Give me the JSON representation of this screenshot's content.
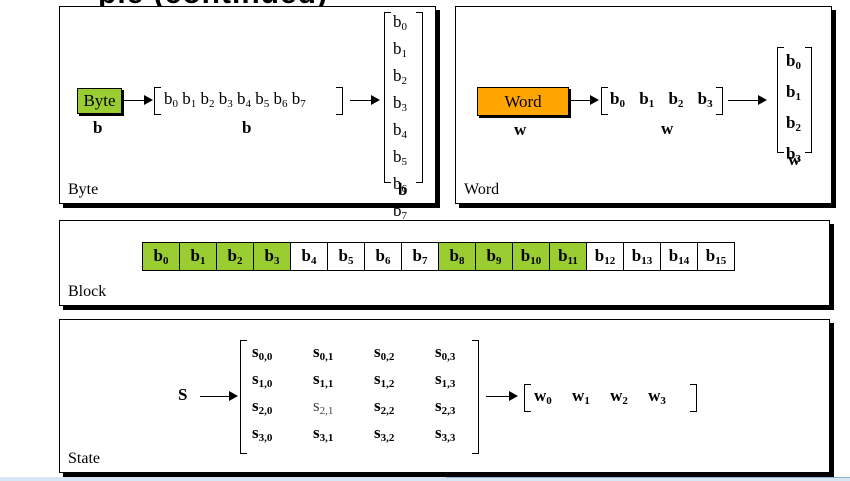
{
  "title_fragment": "ple (continued)",
  "panels": {
    "byte": {
      "label": "Byte",
      "box_label": "Byte",
      "box_var": "b",
      "row_var": "b",
      "col_var": "b",
      "row_items": [
        {
          "base": "b",
          "sub": "0"
        },
        {
          "base": "b",
          "sub": "1"
        },
        {
          "base": "b",
          "sub": "2"
        },
        {
          "base": "b",
          "sub": "3"
        },
        {
          "base": "b",
          "sub": "4"
        },
        {
          "base": "b",
          "sub": "5"
        },
        {
          "base": "b",
          "sub": "6"
        },
        {
          "base": "b",
          "sub": "7"
        }
      ],
      "col_items": [
        {
          "base": "b",
          "sub": "0"
        },
        {
          "base": "b",
          "sub": "1"
        },
        {
          "base": "b",
          "sub": "2"
        },
        {
          "base": "b",
          "sub": "3"
        },
        {
          "base": "b",
          "sub": "4"
        },
        {
          "base": "b",
          "sub": "5"
        },
        {
          "base": "b",
          "sub": "6"
        },
        {
          "base": "b",
          "sub": "7"
        }
      ]
    },
    "word": {
      "label": "Word",
      "box_label": "Word",
      "box_var": "w",
      "row_var": "w",
      "col_var": "w",
      "row_items": [
        {
          "base": "b",
          "sub": "0"
        },
        {
          "base": "b",
          "sub": "1"
        },
        {
          "base": "b",
          "sub": "2"
        },
        {
          "base": "b",
          "sub": "3"
        }
      ],
      "col_items": [
        {
          "base": "b",
          "sub": "0"
        },
        {
          "base": "b",
          "sub": "1"
        },
        {
          "base": "b",
          "sub": "2"
        },
        {
          "base": "b",
          "sub": "3"
        }
      ]
    },
    "block": {
      "label": "Block",
      "cells": [
        {
          "base": "b",
          "sub": "0",
          "highlight": true
        },
        {
          "base": "b",
          "sub": "1",
          "highlight": true
        },
        {
          "base": "b",
          "sub": "2",
          "highlight": true
        },
        {
          "base": "b",
          "sub": "3",
          "highlight": true
        },
        {
          "base": "b",
          "sub": "4",
          "highlight": false
        },
        {
          "base": "b",
          "sub": "5",
          "highlight": false
        },
        {
          "base": "b",
          "sub": "6",
          "highlight": false
        },
        {
          "base": "b",
          "sub": "7",
          "highlight": false
        },
        {
          "base": "b",
          "sub": "8",
          "highlight": true
        },
        {
          "base": "b",
          "sub": "9",
          "highlight": true
        },
        {
          "base": "b",
          "sub": "10",
          "highlight": true
        },
        {
          "base": "b",
          "sub": "11",
          "highlight": true
        },
        {
          "base": "b",
          "sub": "12",
          "highlight": false
        },
        {
          "base": "b",
          "sub": "13",
          "highlight": false
        },
        {
          "base": "b",
          "sub": "14",
          "highlight": false
        },
        {
          "base": "b",
          "sub": "15",
          "highlight": false
        }
      ]
    },
    "state": {
      "label": "State",
      "var": "S",
      "matrix": [
        [
          {
            "base": "s",
            "sub": "0,0"
          },
          {
            "base": "s",
            "sub": "0,1"
          },
          {
            "base": "s",
            "sub": "0,2"
          },
          {
            "base": "s",
            "sub": "0,3"
          }
        ],
        [
          {
            "base": "s",
            "sub": "1,0"
          },
          {
            "base": "s",
            "sub": "1,1"
          },
          {
            "base": "s",
            "sub": "1,2"
          },
          {
            "base": "s",
            "sub": "1,3"
          }
        ],
        [
          {
            "base": "s",
            "sub": "2,0"
          },
          {
            "base": "s",
            "sub": "2,1",
            "plain": true
          },
          {
            "base": "s",
            "sub": "2,2"
          },
          {
            "base": "s",
            "sub": "2,3"
          }
        ],
        [
          {
            "base": "s",
            "sub": "3,0"
          },
          {
            "base": "s",
            "sub": "3,1"
          },
          {
            "base": "s",
            "sub": "3,2"
          },
          {
            "base": "s",
            "sub": "3,3"
          }
        ]
      ],
      "words": [
        {
          "base": "w",
          "sub": "0"
        },
        {
          "base": "w",
          "sub": "1"
        },
        {
          "base": "w",
          "sub": "2"
        },
        {
          "base": "w",
          "sub": "3"
        }
      ]
    }
  },
  "colors": {
    "byte_box": "#9ACD32",
    "word_box": "#FFA500",
    "block_highlight": "#9ACD32",
    "block_plain": "#FFFFFF"
  }
}
